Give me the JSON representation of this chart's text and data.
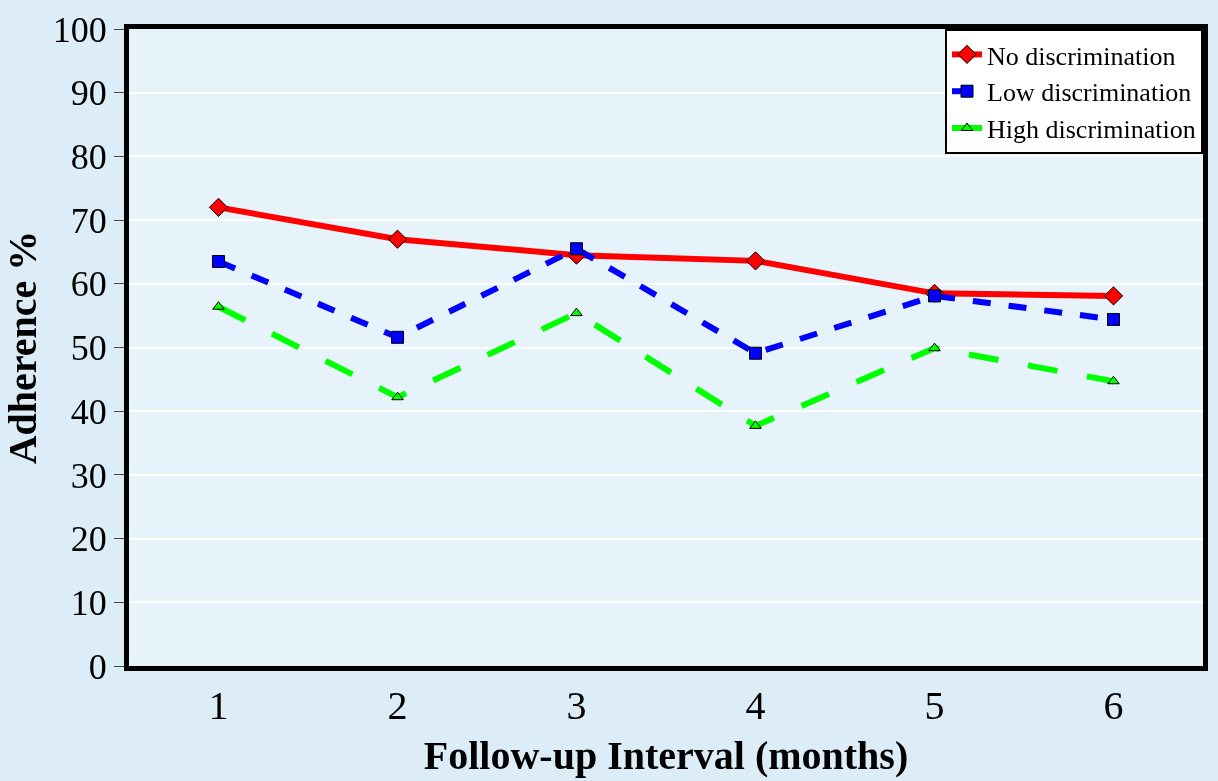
{
  "chart_data": {
    "type": "line",
    "xlabel": "Follow-up Interval (months)",
    "ylabel": "Adherence %",
    "categories": [
      "1",
      "2",
      "3",
      "4",
      "5",
      "6"
    ],
    "ylim": [
      0,
      100
    ],
    "yticks": [
      0,
      10,
      20,
      30,
      40,
      50,
      60,
      70,
      80,
      90,
      100
    ],
    "grid": "y",
    "legend": "top right",
    "series": [
      {
        "name": "No discrimination",
        "color": "#ff0000",
        "marker": "diamond",
        "line_style": "solid",
        "values": [
          72,
          67,
          64.5,
          63.6,
          58.5,
          58.1
        ]
      },
      {
        "name": "Low discrimination",
        "color": "#0000ff",
        "marker": "square",
        "line_style": "dashed",
        "values": [
          63.5,
          51.6,
          65.5,
          49.1,
          58.1,
          54.4
        ]
      },
      {
        "name": "High discrimination",
        "color": "#00ff00",
        "marker": "triangle",
        "line_style": "longdash",
        "values": [
          56.4,
          42.2,
          55.4,
          37.7,
          49.9,
          44.7
        ]
      }
    ]
  }
}
